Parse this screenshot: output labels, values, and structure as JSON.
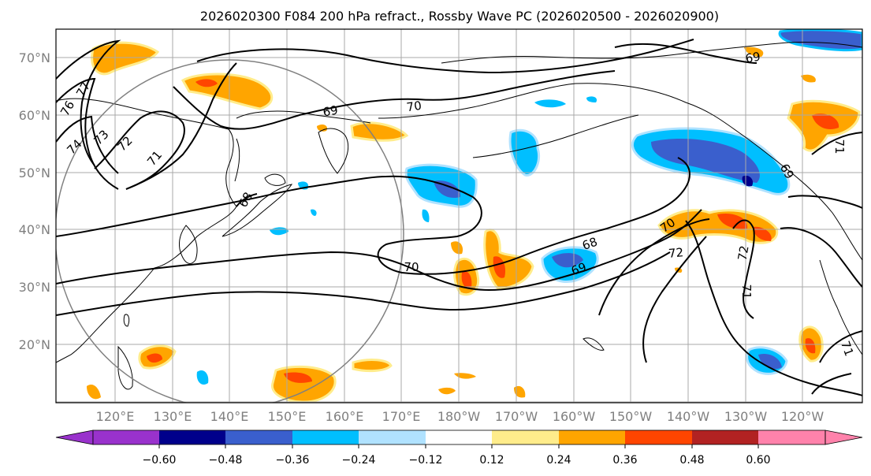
{
  "title": "2026020300 F084 200 hPa refract., Rossby Wave PC (2026020500 - 2026020900)",
  "map": {
    "lat_labels": [
      "70°N",
      "60°N",
      "50°N",
      "40°N",
      "30°N",
      "20°N"
    ],
    "lon_labels": [
      "120°E",
      "130°E",
      "140°E",
      "150°E",
      "160°E",
      "170°E",
      "180°W",
      "170°W",
      "160°W",
      "150°W",
      "140°W",
      "130°W",
      "120°W"
    ],
    "contour_labels": [
      "77",
      "76",
      "74",
      "73",
      "72",
      "71",
      "69",
      "70",
      "68",
      "69",
      "68",
      "69",
      "70",
      "72",
      "72",
      "71",
      "70",
      "71",
      "71",
      "69"
    ],
    "colors": {
      "coast": "#000000",
      "grid": "#a9a9a9",
      "circle": "#808080",
      "contour": "#000000"
    }
  },
  "colorbar": {
    "ticks": [
      "−0.60",
      "−0.48",
      "−0.36",
      "−0.24",
      "−0.12",
      "0.12",
      "0.24",
      "0.36",
      "0.48",
      "0.60"
    ],
    "colors": [
      "#9932cc",
      "#00008b",
      "#3a5fcd",
      "#00bfff",
      "#b0e2ff",
      "#ffffff",
      "#ffec8b",
      "#ffa500",
      "#ff4500",
      "#b22222",
      "#ff82ab"
    ]
  }
}
